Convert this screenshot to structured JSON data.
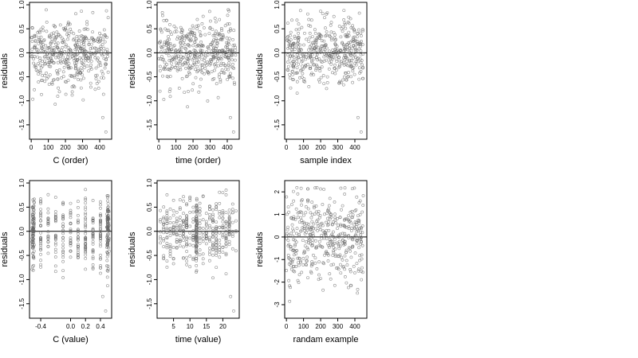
{
  "chart_data": [
    {
      "type": "scatter",
      "xlabel": "C (order)",
      "ylabel": "residuals",
      "xlim": [
        -10,
        470
      ],
      "ylim": [
        -1.8,
        1.05
      ],
      "xticks": [
        0,
        100,
        200,
        300,
        400
      ],
      "xtick_labels": [
        "0",
        "100",
        "200",
        "300",
        "400"
      ],
      "yticks": [
        1.0,
        0.5,
        0.0,
        -0.5,
        -1.0,
        -1.5
      ],
      "ytick_labels": [
        "1.0",
        "0.5",
        "0.0",
        "-0.5",
        "-1.0",
        "-1.5"
      ],
      "hline": 0,
      "point_count": 450,
      "x_range": [
        0,
        450
      ],
      "y_center": 0.0,
      "y_spread": 0.35,
      "y_extremes": [
        -1.7,
        0.9
      ],
      "grid": false
    },
    {
      "type": "scatter",
      "xlabel": "time (order)",
      "ylabel": "residuals",
      "xlim": [
        -10,
        470
      ],
      "ylim": [
        -1.8,
        1.05
      ],
      "xticks": [
        0,
        100,
        200,
        300,
        400
      ],
      "xtick_labels": [
        "0",
        "100",
        "200",
        "300",
        "400"
      ],
      "yticks": [
        1.0,
        0.5,
        0.0,
        -0.5,
        -1.0,
        -1.5
      ],
      "ytick_labels": [
        "1.0",
        "0.5",
        "0.0",
        "-0.5",
        "-1.0",
        "-1.5"
      ],
      "hline": 0,
      "point_count": 450,
      "x_range": [
        0,
        450
      ],
      "y_center": 0.0,
      "y_spread": 0.35,
      "y_extremes": [
        -1.7,
        0.9
      ],
      "grid": false
    },
    {
      "type": "scatter",
      "xlabel": "sample index",
      "ylabel": "residuals",
      "xlim": [
        -10,
        470
      ],
      "ylim": [
        -1.8,
        1.05
      ],
      "xticks": [
        0,
        100,
        200,
        300,
        400
      ],
      "xtick_labels": [
        "0",
        "100",
        "200",
        "300",
        "400"
      ],
      "yticks": [
        1.0,
        0.5,
        0.0,
        -0.5,
        -1.0,
        -1.5
      ],
      "ytick_labels": [
        "1.0",
        "0.5",
        "0.0",
        "-0.5",
        "-1.0",
        "-1.5"
      ],
      "hline": 0,
      "point_count": 450,
      "x_range": [
        0,
        450
      ],
      "y_center": 0.0,
      "y_spread": 0.35,
      "y_extremes": [
        -1.7,
        0.9
      ],
      "grid": false
    },
    {
      "type": "scatter",
      "xlabel": "C (value)",
      "ylabel": "residuals",
      "xlim": [
        -0.55,
        0.55
      ],
      "ylim": [
        -1.8,
        1.05
      ],
      "xticks": [
        -0.4,
        0.0,
        0.2,
        0.4
      ],
      "xtick_labels": [
        "-0.4",
        "0.0",
        "0.2",
        "0.4"
      ],
      "yticks": [
        1.0,
        0.5,
        0.0,
        -0.5,
        -1.0,
        -1.5
      ],
      "ytick_labels": [
        "1.0",
        "0.5",
        "0.0",
        "-0.5",
        "-1.0",
        "-1.5"
      ],
      "hline": 0,
      "point_count": 450,
      "x_range": [
        -0.5,
        0.5
      ],
      "x_clusters": [
        -0.5,
        0.5
      ],
      "y_center": 0.0,
      "y_spread": 0.35,
      "y_extremes": [
        -1.7,
        0.9
      ],
      "grid": false
    },
    {
      "type": "scatter",
      "xlabel": "time (value)",
      "ylabel": "residuals",
      "xlim": [
        0,
        25
      ],
      "ylim": [
        -1.8,
        1.05
      ],
      "xticks": [
        5,
        10,
        15,
        20
      ],
      "xtick_labels": [
        "5",
        "10",
        "15",
        "20"
      ],
      "yticks": [
        1.0,
        0.5,
        0.0,
        -0.5,
        -1.0,
        -1.5
      ],
      "ytick_labels": [
        "1.0",
        "0.5",
        "0.0",
        "-0.5",
        "-1.0",
        "-1.5"
      ],
      "hline": 0,
      "point_count": 450,
      "x_range": [
        1,
        24
      ],
      "x_clusters": [
        12
      ],
      "y_center": 0.0,
      "y_spread": 0.35,
      "y_extremes": [
        -1.7,
        0.9
      ],
      "grid": false
    },
    {
      "type": "scatter",
      "xlabel": "randam example",
      "ylabel": "residuals",
      "xlim": [
        -10,
        470
      ],
      "ylim": [
        -3.6,
        2.5
      ],
      "xticks": [
        0,
        100,
        200,
        300,
        400
      ],
      "xtick_labels": [
        "0",
        "100",
        "200",
        "300",
        "400"
      ],
      "yticks": [
        2,
        1,
        0,
        -1,
        -2,
        -3
      ],
      "ytick_labels": [
        "2",
        "1",
        "0",
        "-1",
        "-2",
        "-3"
      ],
      "hline": 0,
      "point_count": 450,
      "x_range": [
        0,
        450
      ],
      "y_center": 0.0,
      "y_spread": 1.0,
      "y_extremes": [
        -3.4,
        2.2
      ],
      "grid": false
    }
  ],
  "colors": {
    "background": "#ffffff",
    "axis": "#000000",
    "points": "#666666",
    "hline": "#000000"
  }
}
